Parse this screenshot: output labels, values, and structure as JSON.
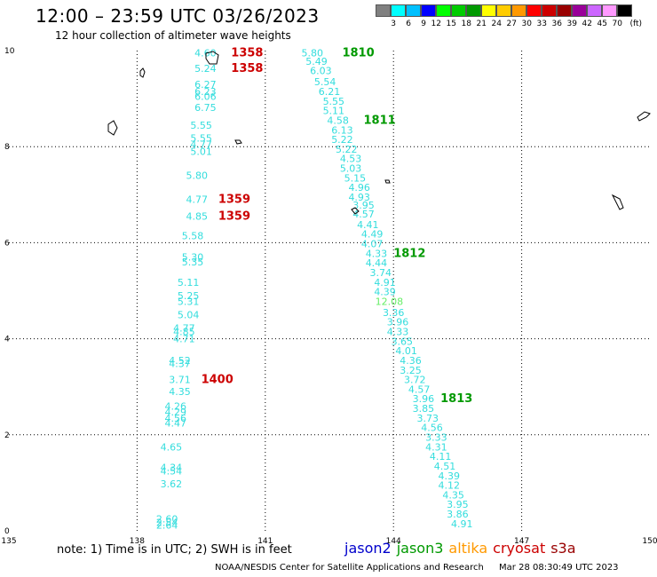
{
  "header": {
    "title": "12:00 – 23:59 UTC 03/26/2023",
    "subtitle": "12 hour collection of altimeter wave heights"
  },
  "colorbar": {
    "colors": [
      "#808080",
      "#00ffff",
      "#00c0ff",
      "#0000ff",
      "#00ff00",
      "#00cc00",
      "#009900",
      "#ffff00",
      "#ffcc00",
      "#ff9900",
      "#ff0000",
      "#cc0000",
      "#990000",
      "#990099",
      "#cc66ff",
      "#ff99ff",
      "#000000"
    ],
    "labels": [
      "3",
      "6",
      "9",
      "12",
      "15",
      "18",
      "21",
      "24",
      "27",
      "30",
      "33",
      "36",
      "39",
      "42",
      "45",
      "70"
    ],
    "unit": "(ft)"
  },
  "note": "note: 1) Time is in UTC; 2) SWH is in feet",
  "missions": [
    {
      "name": "jason2",
      "color": "#0000cc"
    },
    {
      "name": "jason3",
      "color": "#009900"
    },
    {
      "name": "altika",
      "color": "#ff9900"
    },
    {
      "name": "cryosat",
      "color": "#cc0000"
    },
    {
      "name": "s3a",
      "color": "#990000"
    }
  ],
  "footer": {
    "credit": "NOAA/NESDIS Center for Satellite Applications and Research",
    "generated": "Mar 28 08:30:49 UTC 2023"
  },
  "chart_data": {
    "type": "scatter",
    "xlim": [
      135,
      150
    ],
    "ylim": [
      0,
      10
    ],
    "x_ticks": [
      "135",
      "138",
      "141",
      "144",
      "147",
      "150"
    ],
    "y_ticks": [
      "0",
      "2",
      "4",
      "6",
      "8",
      "10"
    ],
    "grid": true,
    "series": [
      {
        "name": "cryosat",
        "color": "#33dddd",
        "points": [
          {
            "x": 139.6,
            "y": 9.95,
            "label": "4.60"
          },
          {
            "x": 139.6,
            "y": 9.63,
            "label": "5.24"
          },
          {
            "x": 139.6,
            "y": 9.3,
            "label": "6.27"
          },
          {
            "x": 139.6,
            "y": 9.15,
            "label": "6.23"
          },
          {
            "x": 139.6,
            "y": 9.05,
            "label": "6.06"
          },
          {
            "x": 139.6,
            "y": 8.82,
            "label": "6.75"
          },
          {
            "x": 139.5,
            "y": 8.45,
            "label": "5.55"
          },
          {
            "x": 139.5,
            "y": 8.18,
            "label": "5.55"
          },
          {
            "x": 139.5,
            "y": 8.05,
            "label": "4.77"
          },
          {
            "x": 139.5,
            "y": 7.9,
            "label": "5.01"
          },
          {
            "x": 139.4,
            "y": 7.4,
            "label": "5.80"
          },
          {
            "x": 139.4,
            "y": 6.9,
            "label": "4.77"
          },
          {
            "x": 139.4,
            "y": 6.55,
            "label": "4.85"
          },
          {
            "x": 139.3,
            "y": 6.15,
            "label": "5.58"
          },
          {
            "x": 139.3,
            "y": 5.7,
            "label": "5.30"
          },
          {
            "x": 139.3,
            "y": 5.6,
            "label": "5.35"
          },
          {
            "x": 139.2,
            "y": 5.18,
            "label": "5.11"
          },
          {
            "x": 139.2,
            "y": 4.9,
            "label": "5.25"
          },
          {
            "x": 139.2,
            "y": 4.78,
            "label": "5.31"
          },
          {
            "x": 139.2,
            "y": 4.5,
            "label": "5.04"
          },
          {
            "x": 139.1,
            "y": 4.22,
            "label": "4.77"
          },
          {
            "x": 139.1,
            "y": 4.15,
            "label": "4.85"
          },
          {
            "x": 139.1,
            "y": 4.0,
            "label": "4.71"
          },
          {
            "x": 139.0,
            "y": 3.55,
            "label": "4.52"
          },
          {
            "x": 139.0,
            "y": 3.48,
            "label": "4.37"
          },
          {
            "x": 139.0,
            "y": 3.15,
            "label": "3.71"
          },
          {
            "x": 139.0,
            "y": 2.9,
            "label": "4.35"
          },
          {
            "x": 138.9,
            "y": 2.6,
            "label": "4.26"
          },
          {
            "x": 138.9,
            "y": 2.48,
            "label": "4.29"
          },
          {
            "x": 138.9,
            "y": 2.35,
            "label": "4.56"
          },
          {
            "x": 138.9,
            "y": 2.25,
            "label": "4.47"
          },
          {
            "x": 138.8,
            "y": 1.75,
            "label": "4.65"
          },
          {
            "x": 138.8,
            "y": 1.32,
            "label": "4.34"
          },
          {
            "x": 138.8,
            "y": 1.25,
            "label": "4.54"
          },
          {
            "x": 138.8,
            "y": 0.98,
            "label": "3.62"
          },
          {
            "x": 138.7,
            "y": 0.25,
            "label": "2.60"
          },
          {
            "x": 138.7,
            "y": 0.18,
            "label": "2.54"
          },
          {
            "x": 138.7,
            "y": 0.12,
            "label": "2.64"
          }
        ]
      },
      {
        "name": "jason3",
        "color": "#33dddd",
        "points": [
          {
            "x": 142.1,
            "y": 9.95,
            "label": "5.80"
          },
          {
            "x": 142.2,
            "y": 9.78,
            "label": "5.49"
          },
          {
            "x": 142.3,
            "y": 9.58,
            "label": "6.03"
          },
          {
            "x": 142.4,
            "y": 9.35,
            "label": "5.54"
          },
          {
            "x": 142.5,
            "y": 9.15,
            "label": "6.21"
          },
          {
            "x": 142.6,
            "y": 8.95,
            "label": "5.55"
          },
          {
            "x": 142.6,
            "y": 8.75,
            "label": "5.11"
          },
          {
            "x": 142.7,
            "y": 8.55,
            "label": "4.58"
          },
          {
            "x": 142.8,
            "y": 8.35,
            "label": "6.13"
          },
          {
            "x": 142.8,
            "y": 8.15,
            "label": "5.22"
          },
          {
            "x": 142.9,
            "y": 7.95,
            "label": "5.22"
          },
          {
            "x": 143.0,
            "y": 7.75,
            "label": "4.53"
          },
          {
            "x": 143.0,
            "y": 7.55,
            "label": "5.03"
          },
          {
            "x": 143.1,
            "y": 7.35,
            "label": "5.15"
          },
          {
            "x": 143.2,
            "y": 7.15,
            "label": "4.96"
          },
          {
            "x": 143.2,
            "y": 6.95,
            "label": "4.93"
          },
          {
            "x": 143.3,
            "y": 6.78,
            "label": "3.95"
          },
          {
            "x": 143.3,
            "y": 6.6,
            "label": "4.57"
          },
          {
            "x": 143.4,
            "y": 6.38,
            "label": "4.41"
          },
          {
            "x": 143.5,
            "y": 6.18,
            "label": "4.49"
          },
          {
            "x": 143.5,
            "y": 5.98,
            "label": "4.07"
          },
          {
            "x": 143.6,
            "y": 5.78,
            "label": "4.33"
          },
          {
            "x": 143.6,
            "y": 5.58,
            "label": "4.44"
          },
          {
            "x": 143.7,
            "y": 5.38,
            "label": "3.74"
          },
          {
            "x": 143.8,
            "y": 5.18,
            "label": "4.91"
          },
          {
            "x": 143.8,
            "y": 4.98,
            "label": "4.39"
          },
          {
            "x": 143.9,
            "y": 4.78,
            "label": "12.08"
          },
          {
            "x": 144.0,
            "y": 4.55,
            "label": "3.36"
          },
          {
            "x": 144.1,
            "y": 4.35,
            "label": "3.96"
          },
          {
            "x": 144.1,
            "y": 4.15,
            "label": "4.33"
          },
          {
            "x": 144.2,
            "y": 3.95,
            "label": "3.65"
          },
          {
            "x": 144.3,
            "y": 3.75,
            "label": "4.01"
          },
          {
            "x": 144.4,
            "y": 3.55,
            "label": "4.36"
          },
          {
            "x": 144.4,
            "y": 3.35,
            "label": "3.25"
          },
          {
            "x": 144.5,
            "y": 3.15,
            "label": "3.72"
          },
          {
            "x": 144.6,
            "y": 2.95,
            "label": "4.57"
          },
          {
            "x": 144.7,
            "y": 2.75,
            "label": "3.96"
          },
          {
            "x": 144.7,
            "y": 2.55,
            "label": "3.85"
          },
          {
            "x": 144.8,
            "y": 2.35,
            "label": "3.73"
          },
          {
            "x": 144.9,
            "y": 2.15,
            "label": "4.56"
          },
          {
            "x": 145.0,
            "y": 1.95,
            "label": "3.33"
          },
          {
            "x": 145.0,
            "y": 1.75,
            "label": "4.31"
          },
          {
            "x": 145.1,
            "y": 1.55,
            "label": "4.11"
          },
          {
            "x": 145.2,
            "y": 1.35,
            "label": "4.51"
          },
          {
            "x": 145.3,
            "y": 1.15,
            "label": "4.39"
          },
          {
            "x": 145.3,
            "y": 0.95,
            "label": "4.12"
          },
          {
            "x": 145.4,
            "y": 0.75,
            "label": "4.35"
          },
          {
            "x": 145.5,
            "y": 0.55,
            "label": "3.95"
          },
          {
            "x": 145.5,
            "y": 0.35,
            "label": "3.86"
          },
          {
            "x": 145.6,
            "y": 0.15,
            "label": "4.91"
          }
        ]
      }
    ],
    "time_labels": [
      {
        "x": 140.2,
        "y": 9.95,
        "label": "1358",
        "color": "#cc0000"
      },
      {
        "x": 140.2,
        "y": 9.63,
        "label": "1358",
        "color": "#cc0000"
      },
      {
        "x": 139.9,
        "y": 6.9,
        "label": "1359",
        "color": "#cc0000"
      },
      {
        "x": 139.9,
        "y": 6.55,
        "label": "1359",
        "color": "#cc0000"
      },
      {
        "x": 139.5,
        "y": 3.15,
        "label": "1400",
        "color": "#cc0000"
      },
      {
        "x": 142.8,
        "y": 9.95,
        "label": "1810",
        "color": "#009900"
      },
      {
        "x": 143.3,
        "y": 8.55,
        "label": "1811",
        "color": "#009900"
      },
      {
        "x": 144.0,
        "y": 5.78,
        "label": "1812",
        "color": "#009900"
      },
      {
        "x": 145.1,
        "y": 2.75,
        "label": "1813",
        "color": "#009900"
      }
    ]
  }
}
